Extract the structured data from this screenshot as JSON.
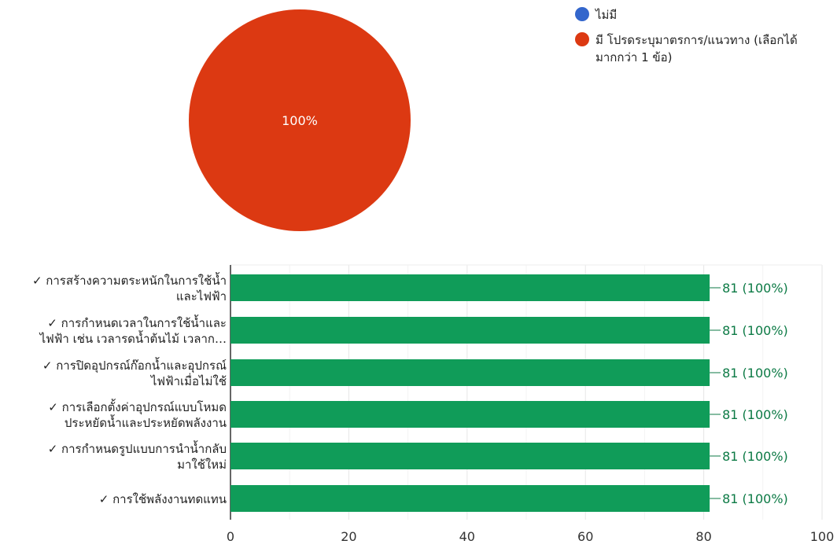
{
  "chart_data": [
    {
      "type": "pie",
      "legend": {
        "position": "top-right",
        "entries": [
          {
            "label": "ไม่มี",
            "color": "#3366cc"
          },
          {
            "label_lines": [
              "มี โปรดระบุมาตรการ/แนวทาง (เลือกได้",
              "มากกว่า 1 ข้อ)"
            ],
            "color": "#dc3912"
          }
        ]
      },
      "slices": [
        {
          "name": "ไม่มี",
          "value": 0,
          "color": "#3366cc"
        },
        {
          "name": "มี โปรดระบุมาตรการ/แนวทาง (เลือกได้มากกว่า 1 ข้อ)",
          "value": 100,
          "color": "#dc3912"
        }
      ],
      "slice_label": "100%"
    },
    {
      "type": "bar",
      "orientation": "horizontal",
      "categories": [
        [
          "✓ การสร้างความตระหนักในการใช้น้ำ",
          "และไฟฟ้า"
        ],
        [
          "✓ การกำหนดเวลาในการใช้น้ำและ",
          "ไฟฟ้า เช่น เวลารดน้ำต้นไม้ เวลาก…"
        ],
        [
          "✓ การปิดอุปกรณ์ก๊อกน้ำและอุปกรณ์",
          "ไฟฟ้าเมื่อไม่ใช้"
        ],
        [
          "✓ การเลือกตั้งค่าอุปกรณ์แบบโหมด",
          "ประหยัดน้ำและประหยัดพลังงาน"
        ],
        [
          "✓ การกำหนดรูปแบบการนำน้ำกลับ",
          "มาใช้ใหม่"
        ],
        [
          "✓ การใช้พลังงานทดแทน"
        ]
      ],
      "values": [
        81,
        81,
        81,
        81,
        81,
        81
      ],
      "value_labels": [
        "81 (100%)",
        "81 (100%)",
        "81 (100%)",
        "81 (100%)",
        "81 (100%)",
        "81 (100%)"
      ],
      "xlim": [
        0,
        100
      ],
      "xticks": [
        0,
        20,
        40,
        60,
        80,
        100
      ],
      "bar_color": "#109c59",
      "label_color": "#0c7a45",
      "grid": true
    }
  ]
}
